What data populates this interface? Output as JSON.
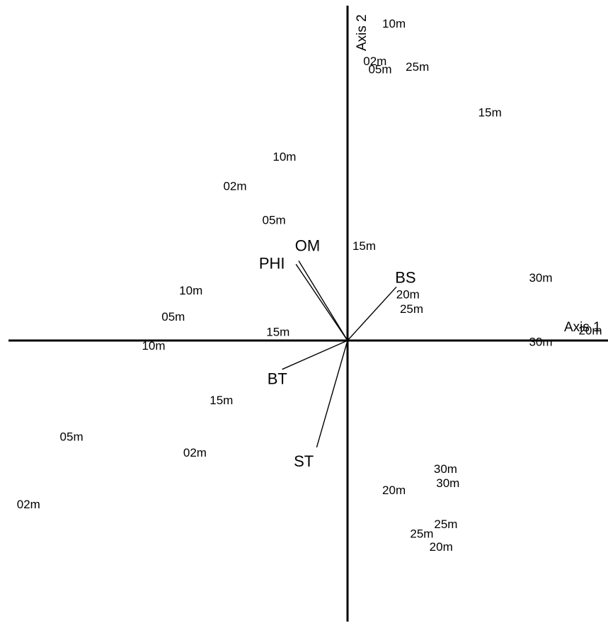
{
  "chart_data": {
    "type": "scatter",
    "title": "",
    "xlabel": "Axis 1",
    "ylabel": "Axis 2",
    "xlim": [
      -1.0,
      0.76
    ],
    "ylim": [
      -0.84,
      1.0
    ],
    "grid": false,
    "legend": "none",
    "points": [
      {
        "label": "10m",
        "x": 0.137,
        "y": 0.932
      },
      {
        "label": "02m",
        "x": 0.081,
        "y": 0.822
      },
      {
        "label": "05m",
        "x": 0.096,
        "y": 0.797
      },
      {
        "label": "25m",
        "x": 0.206,
        "y": 0.805
      },
      {
        "label": "15m",
        "x": 0.42,
        "y": 0.67
      },
      {
        "label": "10m",
        "x": -0.186,
        "y": 0.54
      },
      {
        "label": "02m",
        "x": -0.332,
        "y": 0.453
      },
      {
        "label": "05m",
        "x": -0.217,
        "y": 0.353
      },
      {
        "label": "15m",
        "x": 0.049,
        "y": 0.277
      },
      {
        "label": "30m",
        "x": 0.57,
        "y": 0.183
      },
      {
        "label": "20m",
        "x": 0.178,
        "y": 0.134
      },
      {
        "label": "25m",
        "x": 0.189,
        "y": 0.091
      },
      {
        "label": "10m",
        "x": -0.462,
        "y": 0.145
      },
      {
        "label": "05m",
        "x": -0.514,
        "y": 0.068
      },
      {
        "label": "15m",
        "x": -0.205,
        "y": 0.023
      },
      {
        "label": "10m",
        "x": -0.572,
        "y": -0.018
      },
      {
        "label": "20m",
        "x": 0.716,
        "y": 0.027
      },
      {
        "label": "30m",
        "x": 0.57,
        "y": -0.006
      },
      {
        "label": "15m",
        "x": -0.372,
        "y": -0.179
      },
      {
        "label": "05m",
        "x": -0.814,
        "y": -0.286
      },
      {
        "label": "02m",
        "x": -0.45,
        "y": -0.333
      },
      {
        "label": "30m",
        "x": 0.289,
        "y": -0.381
      },
      {
        "label": "30m",
        "x": 0.296,
        "y": -0.423
      },
      {
        "label": "20m",
        "x": 0.137,
        "y": -0.444
      },
      {
        "label": "02m",
        "x": -0.941,
        "y": -0.485
      },
      {
        "label": "25m",
        "x": 0.29,
        "y": -0.544
      },
      {
        "label": "25m",
        "x": 0.219,
        "y": -0.572
      },
      {
        "label": "20m",
        "x": 0.276,
        "y": -0.611
      }
    ],
    "vectors": [
      {
        "label": "OM",
        "x": -0.144,
        "y": 0.235
      },
      {
        "label": "PHI",
        "x": -0.152,
        "y": 0.225
      },
      {
        "label": "BS",
        "x": 0.144,
        "y": 0.158
      },
      {
        "label": "BT",
        "x": -0.193,
        "y": -0.085
      },
      {
        "label": "ST",
        "x": -0.091,
        "y": -0.315
      }
    ],
    "vector_labels": [
      {
        "label": "OM",
        "x": -0.118,
        "y": 0.276
      },
      {
        "label": "PHI",
        "x": -0.223,
        "y": 0.224
      },
      {
        "label": "BS",
        "x": 0.171,
        "y": 0.182
      },
      {
        "label": "BT",
        "x": -0.207,
        "y": -0.116
      },
      {
        "label": "ST",
        "x": -0.129,
        "y": -0.359
      }
    ]
  }
}
